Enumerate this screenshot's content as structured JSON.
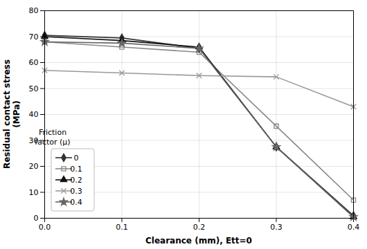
{
  "chart_data": {
    "type": "line",
    "xlabel": "Clearance (mm), Ett=0",
    "ylabel": "Residual contact stress\n(MPa)",
    "annotations": [
      "Friction",
      "factor (μ)"
    ],
    "x": [
      0,
      0.1,
      0.2,
      0.3,
      0.4
    ],
    "xlim": [
      0,
      0.4
    ],
    "ylim": [
      0,
      80
    ],
    "xticks": [
      {
        "value": 0,
        "label": "0.0"
      },
      0.1,
      0.2,
      0.3,
      0.4
    ],
    "yticks": [
      0,
      10,
      20,
      30,
      40,
      50,
      60,
      70,
      80
    ],
    "grid": true,
    "legend": "lower left",
    "series": [
      {
        "name": "0",
        "marker": "diamond",
        "color": "#333333",
        "values": [
          70.5,
          69.5,
          65.5,
          27.5,
          1.0
        ]
      },
      {
        "name": "0.1",
        "marker": "square",
        "color": "#888888",
        "values": [
          68.0,
          66.0,
          64.0,
          35.5,
          7.0
        ]
      },
      {
        "name": "0.2",
        "marker": "triangle",
        "color": "#111111",
        "values": [
          70.0,
          68.5,
          66.0,
          27.5,
          0.5
        ]
      },
      {
        "name": "0.3",
        "marker": "x",
        "color": "#999999",
        "values": [
          57.0,
          56.0,
          55.0,
          54.5,
          43.0
        ]
      },
      {
        "name": "0.4",
        "marker": "star",
        "color": "#666666",
        "values": [
          68.0,
          67.5,
          65.5,
          27.5,
          0.5
        ]
      }
    ]
  }
}
